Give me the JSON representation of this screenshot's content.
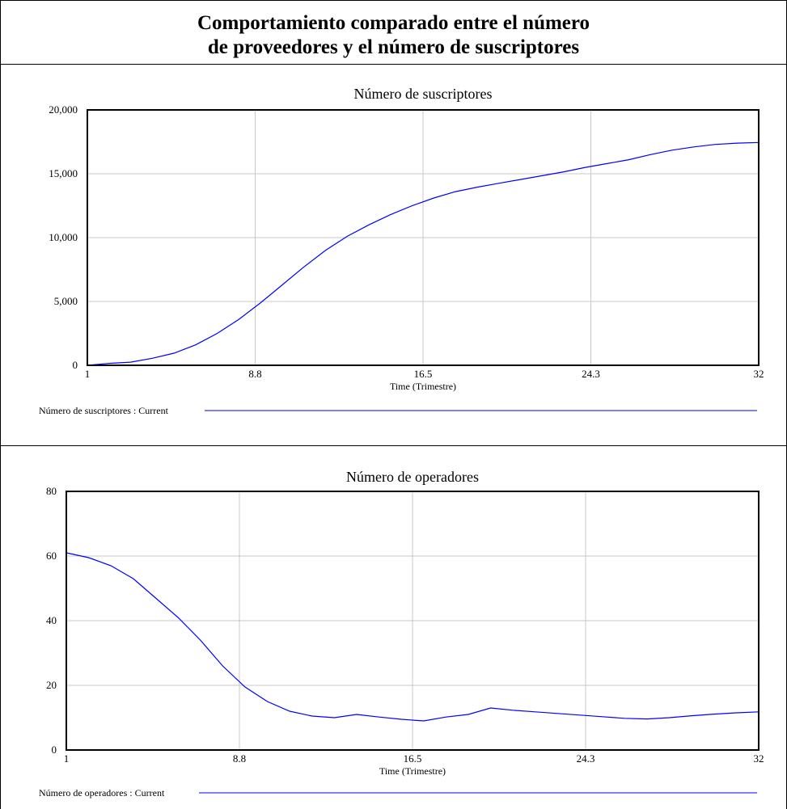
{
  "title_line1": "Comportamiento comparado entre el número",
  "title_line2": "de proveedores y el número de suscriptores",
  "chart_data": [
    {
      "type": "line",
      "title": "Número de suscriptores",
      "xlabel": "Time (Trimestre)",
      "ylabel": "",
      "xlim": [
        1,
        32
      ],
      "ylim": [
        0,
        20000
      ],
      "x_ticks": [
        "1",
        "8.8",
        "16.5",
        "24.3",
        "32"
      ],
      "y_ticks": [
        "20,000",
        "15,000",
        "10,000",
        "5,000",
        "0"
      ],
      "grid": true,
      "legend_position": "bottom",
      "series": [
        {
          "name": "Número de suscriptores : Current",
          "color": "#0000ff",
          "x": [
            1,
            2,
            3,
            4,
            5,
            6,
            7,
            8,
            9,
            10,
            11,
            12,
            13,
            14,
            15,
            16,
            17,
            18,
            19,
            20,
            21,
            22,
            23,
            24,
            25,
            26,
            27,
            28,
            29,
            30,
            31,
            32
          ],
          "values": [
            0,
            150,
            250,
            550,
            950,
            1600,
            2500,
            3600,
            4900,
            6300,
            7700,
            9000,
            10100,
            11000,
            11800,
            12500,
            13100,
            13600,
            13950,
            14250,
            14550,
            14850,
            15150,
            15500,
            15800,
            16100,
            16500,
            16850,
            17100,
            17300,
            17400,
            17450
          ]
        }
      ]
    },
    {
      "type": "line",
      "title": "Número de operadores",
      "xlabel": "Time (Trimestre)",
      "ylabel": "",
      "xlim": [
        1,
        32
      ],
      "ylim": [
        0,
        80
      ],
      "x_ticks": [
        "1",
        "8.8",
        "16.5",
        "24.3",
        "32"
      ],
      "y_ticks": [
        "80",
        "60",
        "40",
        "20",
        "0"
      ],
      "grid": true,
      "legend_position": "bottom",
      "series": [
        {
          "name": "Número de operadores : Current",
          "color": "#0000ff",
          "x": [
            1,
            2,
            3,
            4,
            5,
            6,
            7,
            8,
            9,
            10,
            11,
            12,
            13,
            14,
            15,
            16,
            17,
            18,
            19,
            20,
            21,
            22,
            23,
            24,
            25,
            26,
            27,
            28,
            29,
            30,
            31,
            32
          ],
          "values": [
            61,
            59.5,
            57,
            53,
            47,
            41,
            34,
            26,
            19.5,
            15,
            12,
            10.5,
            10,
            11,
            10.2,
            9.5,
            9,
            10.2,
            11,
            13,
            12.3,
            11.8,
            11.3,
            10.8,
            10.3,
            9.8,
            9.6,
            10,
            10.6,
            11.1,
            11.5,
            11.8
          ]
        }
      ]
    }
  ]
}
